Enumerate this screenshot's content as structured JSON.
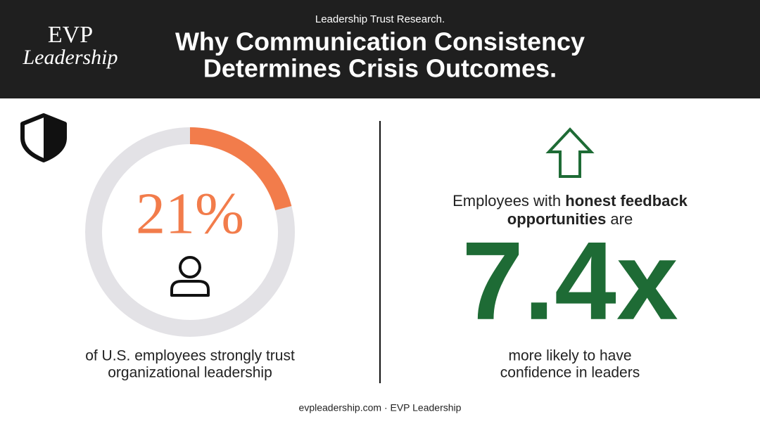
{
  "header": {
    "logo_top": "EVP",
    "logo_bottom": "Leadership",
    "kicker": "Leadership Trust Research.",
    "title_lines": [
      "Why Communication Consistency",
      "Determines Crisis Outcomes."
    ]
  },
  "left": {
    "percent": {
      "value": 21,
      "label": "21%"
    },
    "caption_lines": [
      "of U.S. employees strongly trust",
      "organizational leadership"
    ]
  },
  "right": {
    "intro_line1": {
      "plain": "Employees with ",
      "bold": "honest feedback"
    },
    "intro_line2": {
      "bold": "opportunities",
      "plain": " are"
    },
    "multiplier": "7.4x",
    "caption_lines": [
      "more likely to have",
      "confidence in leaders"
    ]
  },
  "footer": "evpleadership.com · EVP Leadership"
}
